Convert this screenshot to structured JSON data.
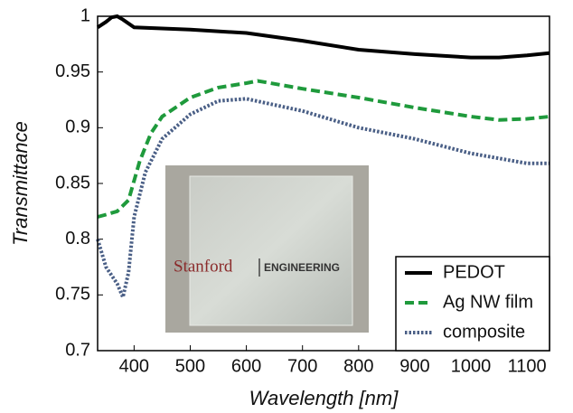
{
  "chart_data": {
    "type": "line",
    "xlabel": "Wavelength [nm]",
    "ylabel": "Transmittance",
    "xlim": [
      335,
      1140
    ],
    "ylim": [
      0.7,
      1.0
    ],
    "xticks": [
      400,
      500,
      600,
      700,
      800,
      900,
      1000,
      1100
    ],
    "yticks": [
      0.7,
      0.75,
      0.8,
      0.85,
      0.9,
      0.95,
      1
    ],
    "legend": "lower right",
    "inset": {
      "left": "Stanford",
      "right": "ENGINEERING"
    },
    "series": [
      {
        "name": "PEDOT",
        "color": "#000000",
        "dash": "solid",
        "x": [
          335,
          350,
          360,
          370,
          380,
          400,
          500,
          600,
          700,
          800,
          900,
          1000,
          1050,
          1100,
          1140
        ],
        "values": [
          0.99,
          0.995,
          0.999,
          1.0,
          0.997,
          0.99,
          0.988,
          0.985,
          0.978,
          0.97,
          0.966,
          0.963,
          0.963,
          0.965,
          0.967
        ]
      },
      {
        "name": "Ag NW film",
        "color": "#1f9a3c",
        "dash": "dashed",
        "x": [
          335,
          350,
          370,
          390,
          410,
          430,
          450,
          500,
          550,
          600,
          620,
          700,
          800,
          900,
          1000,
          1050,
          1100,
          1140
        ],
        "values": [
          0.82,
          0.822,
          0.825,
          0.835,
          0.87,
          0.895,
          0.91,
          0.927,
          0.936,
          0.94,
          0.942,
          0.935,
          0.927,
          0.918,
          0.91,
          0.907,
          0.908,
          0.91
        ]
      },
      {
        "name": "composite",
        "color": "#4a5f86",
        "dash": "dotted",
        "x": [
          335,
          350,
          370,
          380,
          390,
          400,
          420,
          450,
          500,
          550,
          600,
          700,
          800,
          900,
          1000,
          1100,
          1140
        ],
        "values": [
          0.8,
          0.775,
          0.76,
          0.748,
          0.77,
          0.82,
          0.86,
          0.89,
          0.912,
          0.924,
          0.926,
          0.915,
          0.9,
          0.89,
          0.877,
          0.868,
          0.868
        ]
      }
    ]
  }
}
